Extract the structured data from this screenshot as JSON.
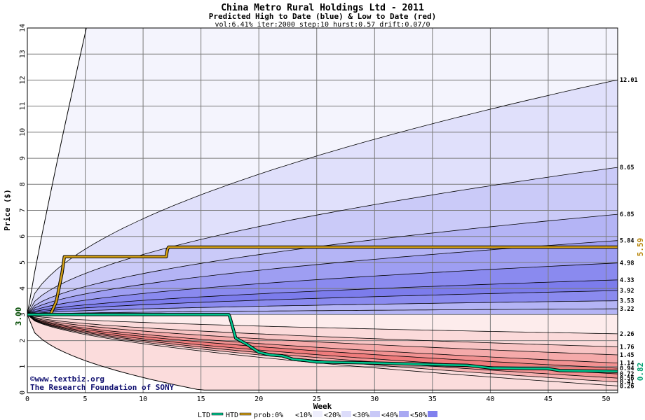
{
  "chart_data": {
    "type": "area",
    "title": "China Metro Rural Holdings Ltd - 2011",
    "subtitle": "Predicted High to Date (blue) &  Low to Date (red)",
    "params": "vol:6.41% iter:2000 step:10 hurst:0.57 drift:0.07/0",
    "xlabel": "Week",
    "ylabel": "Price ($)",
    "xlim": [
      0,
      51
    ],
    "ylim": [
      0,
      14
    ],
    "x_ticks": [
      0,
      5,
      10,
      15,
      20,
      25,
      30,
      35,
      40,
      45,
      50
    ],
    "y_ticks": [
      0,
      1,
      2,
      3,
      4,
      5,
      6,
      7,
      8,
      9,
      10,
      11,
      12,
      13,
      14
    ],
    "grid": true,
    "start_price": "3.00",
    "start_price_value": 3.0,
    "high_to_date_label": "5.59",
    "high_to_date_value": 5.59,
    "low_to_date_label": "0.82",
    "low_to_date_value": 0.82,
    "high_quantile_curves": [
      {
        "label": "12.01",
        "end": 12.01
      },
      {
        "label": "8.65",
        "end": 8.65
      },
      {
        "label": "6.85",
        "end": 6.85
      },
      {
        "label": "5.84",
        "end": 5.84
      },
      {
        "label": "4.98",
        "end": 4.98
      },
      {
        "label": "4.33",
        "end": 4.33
      },
      {
        "label": "3.92",
        "end": 3.92
      },
      {
        "label": "3.53",
        "end": 3.53
      },
      {
        "label": "3.22",
        "end": 3.22
      }
    ],
    "low_quantile_curves": [
      {
        "label": "2.26",
        "end": 2.26
      },
      {
        "label": "1.76",
        "end": 1.76
      },
      {
        "label": "1.45",
        "end": 1.45
      },
      {
        "label": "1.14",
        "end": 1.14
      },
      {
        "label": "0.94",
        "end": 0.94
      },
      {
        "label": "0.72",
        "end": 0.72
      },
      {
        "label": "0.56",
        "end": 0.56
      },
      {
        "label": "0.41",
        "end": 0.41
      },
      {
        "label": "0.26",
        "end": 0.26
      }
    ],
    "series": [
      {
        "name": "HTD",
        "color": "#d4a017",
        "x": [
          0,
          2,
          2.5,
          3,
          3.2,
          12,
          12.1,
          12.2,
          51
        ],
        "y": [
          3.0,
          3.0,
          3.5,
          4.6,
          5.22,
          5.22,
          5.5,
          5.59,
          5.59
        ]
      },
      {
        "name": "LTD",
        "color": "#00c890",
        "x": [
          0,
          1,
          17.4,
          17.5,
          18,
          19,
          20,
          21,
          22,
          23,
          24,
          25,
          30,
          35,
          38,
          40,
          43,
          45,
          46,
          51
        ],
        "y": [
          3.0,
          3.0,
          3.0,
          2.9,
          2.1,
          1.85,
          1.55,
          1.45,
          1.42,
          1.28,
          1.24,
          1.18,
          1.14,
          1.08,
          1.05,
          0.95,
          0.93,
          0.92,
          0.85,
          0.82
        ]
      }
    ],
    "legend": {
      "placement": "bottom",
      "items": [
        "LTD",
        "HTD",
        "prob:0%",
        "<10%",
        "<20%",
        "<30%",
        "<40%",
        "<50%"
      ],
      "colors": [
        "#00c890",
        "#d4a017",
        "#ffffff",
        "#eeeefc",
        "#dcdcfa",
        "#c8c8f7",
        "#a8a8f2",
        "#8080ee"
      ]
    },
    "band_colors": {
      "high": [
        "#f4f4fd",
        "#e0e0fb",
        "#cacaf8",
        "#b4b4f5",
        "#9e9ef2",
        "#8a8aef",
        "#7c7cec",
        "#8a8aef",
        "#b4b4f5"
      ],
      "low": [
        "#fdecec",
        "#fbdada",
        "#f8c4c4",
        "#f5aaaa",
        "#f29292",
        "#ef7c7c",
        "#f29292",
        "#f5b0b0",
        "#fbdcdc"
      ]
    }
  },
  "watermark": {
    "line1": "©www.textbiz.org",
    "line2": "The Research Foundation of SONY"
  }
}
